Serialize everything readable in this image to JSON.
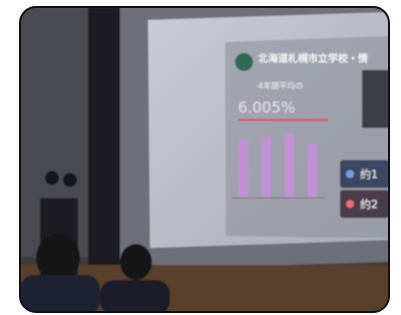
{
  "slide": {
    "title": "北海道札幌市立学校・情",
    "subtitle": "4年間平均の",
    "figure": "6.005%",
    "note_1": "約1",
    "note_2": "約2"
  }
}
